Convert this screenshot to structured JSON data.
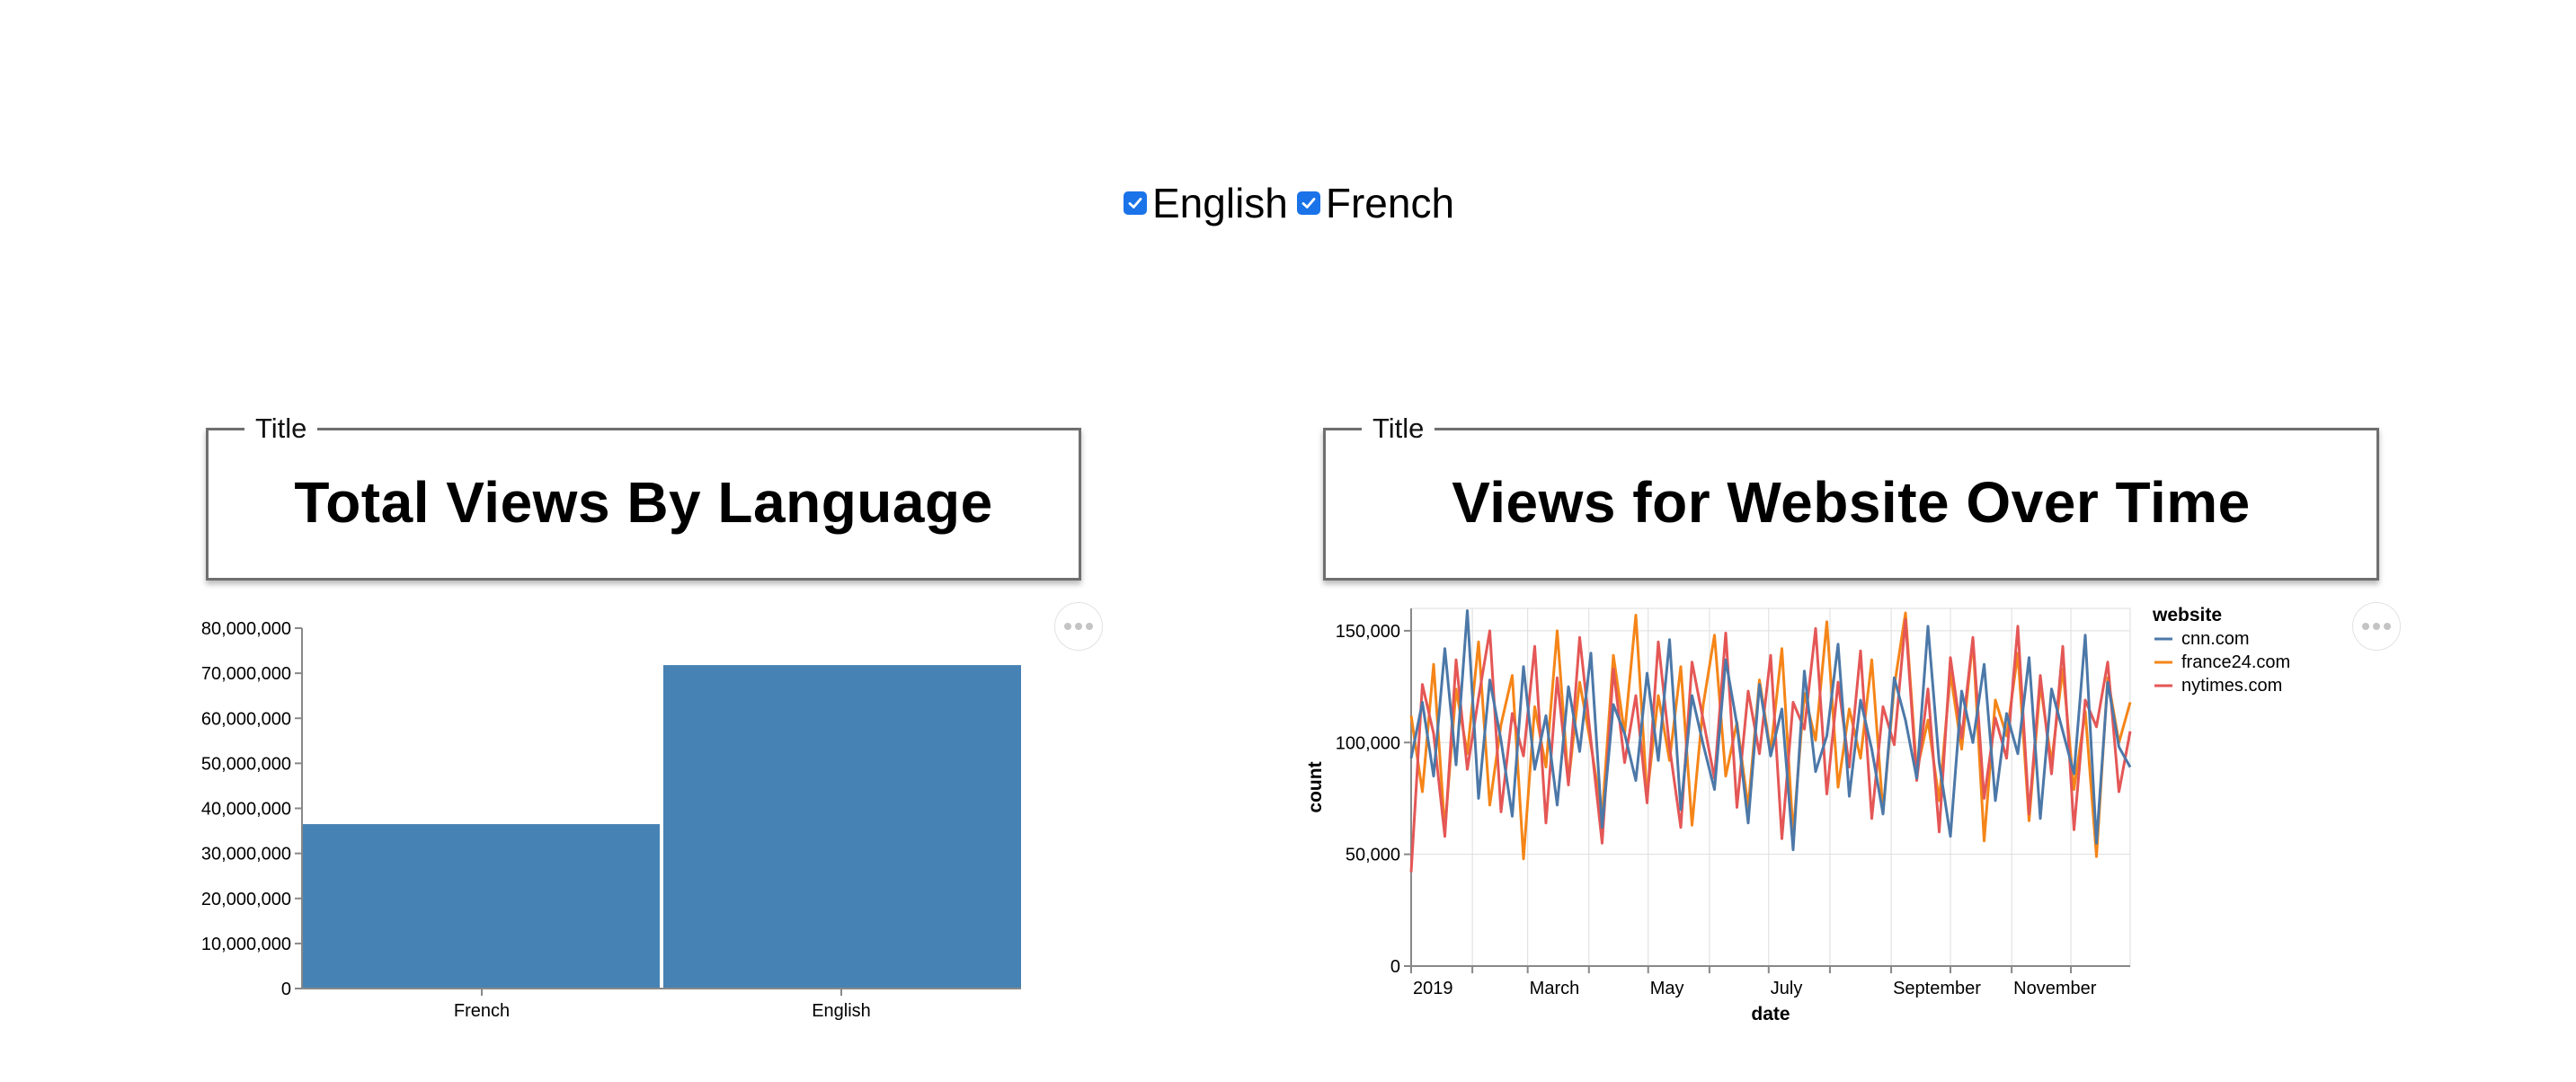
{
  "filters": [
    {
      "label": "English",
      "checked": true
    },
    {
      "label": "French",
      "checked": true
    }
  ],
  "panels": [
    {
      "legend": "Title",
      "title": "Total Views By Language"
    },
    {
      "legend": "Title",
      "title": "Views for Website Over Time"
    }
  ],
  "colors": {
    "checkbox": "#1a73e8",
    "bar": "#4682b4",
    "cnn": "#4c78a8",
    "france24": "#f58518",
    "nytimes": "#e45756"
  },
  "chart_data": [
    {
      "type": "bar",
      "categories": [
        "French",
        "English"
      ],
      "values": [
        36500000,
        71800000
      ],
      "xlabel": "",
      "ylabel": "",
      "ylim": [
        0,
        80000000
      ],
      "yticks": [
        "0",
        "10,000,000",
        "20,000,000",
        "30,000,000",
        "40,000,000",
        "50,000,000",
        "60,000,000",
        "70,000,000",
        "80,000,000"
      ]
    },
    {
      "type": "line",
      "xlabel": "date",
      "ylabel": "count",
      "xlim": [
        "2019-01-01",
        "2019-12-31"
      ],
      "ylim": [
        0,
        160000
      ],
      "yticks": [
        "0",
        "50,000",
        "100,000",
        "150,000"
      ],
      "xticks": [
        "2019",
        "March",
        "May",
        "July",
        "September",
        "November"
      ],
      "grid": true,
      "legend": {
        "title": "website",
        "placement": "right"
      },
      "series": [
        {
          "name": "cnn.com",
          "color": "#4c78a8",
          "values": [
            93000,
            118000,
            85000,
            142000,
            90000,
            159000,
            75000,
            128000,
            101000,
            67000,
            134000,
            88000,
            112000,
            72000,
            125000,
            96000,
            140000,
            62000,
            117000,
            104000,
            83000,
            131000,
            92000,
            146000,
            70000,
            121000,
            99000,
            79000,
            137000,
            108000,
            64000,
            126000,
            94000,
            115000,
            52000,
            132000,
            87000,
            103000,
            144000,
            76000,
            119000,
            97000,
            68000,
            129000,
            110000,
            84000,
            152000,
            91000,
            58000,
            123000,
            100000,
            135000,
            74000,
            113000,
            95000,
            138000,
            66000,
            124000,
            105000,
            86000,
            148000,
            55000,
            127000,
            98000,
            89000
          ]
        },
        {
          "name": "france24.com",
          "color": "#f58518",
          "values": [
            112000,
            78000,
            135000,
            61000,
            124000,
            95000,
            145000,
            72000,
            108000,
            130000,
            48000,
            116000,
            89000,
            150000,
            82000,
            127000,
            99000,
            67000,
            139000,
            104000,
            157000,
            76000,
            121000,
            92000,
            134000,
            63000,
            117000,
            148000,
            85000,
            109000,
            71000,
            128000,
            96000,
            142000,
            59000,
            122000,
            101000,
            154000,
            80000,
            115000,
            93000,
            137000,
            69000,
            125000,
            158000,
            87000,
            110000,
            74000,
            131000,
            97000,
            146000,
            56000,
            119000,
            103000,
            140000,
            65000,
            126000,
            91000,
            133000,
            79000,
            114000,
            49000,
            129000,
            100000,
            118000
          ]
        },
        {
          "name": "nytimes.com",
          "color": "#e45756",
          "values": [
            42000,
            126000,
            104000,
            58000,
            137000,
            88000,
            120000,
            150000,
            69000,
            113000,
            94000,
            143000,
            64000,
            129000,
            81000,
            147000,
            101000,
            55000,
            133000,
            91000,
            121000,
            73000,
            145000,
            98000,
            62000,
            136000,
            110000,
            84000,
            149000,
            71000,
            123000,
            95000,
            139000,
            57000,
            118000,
            106000,
            151000,
            77000,
            127000,
            89000,
            141000,
            66000,
            116000,
            99000,
            155000,
            83000,
            124000,
            60000,
            138000,
            102000,
            147000,
            75000,
            111000,
            93000,
            152000,
            68000,
            130000,
            86000,
            143000,
            61000,
            119000,
            107000,
            136000,
            78000,
            105000
          ]
        }
      ]
    }
  ]
}
